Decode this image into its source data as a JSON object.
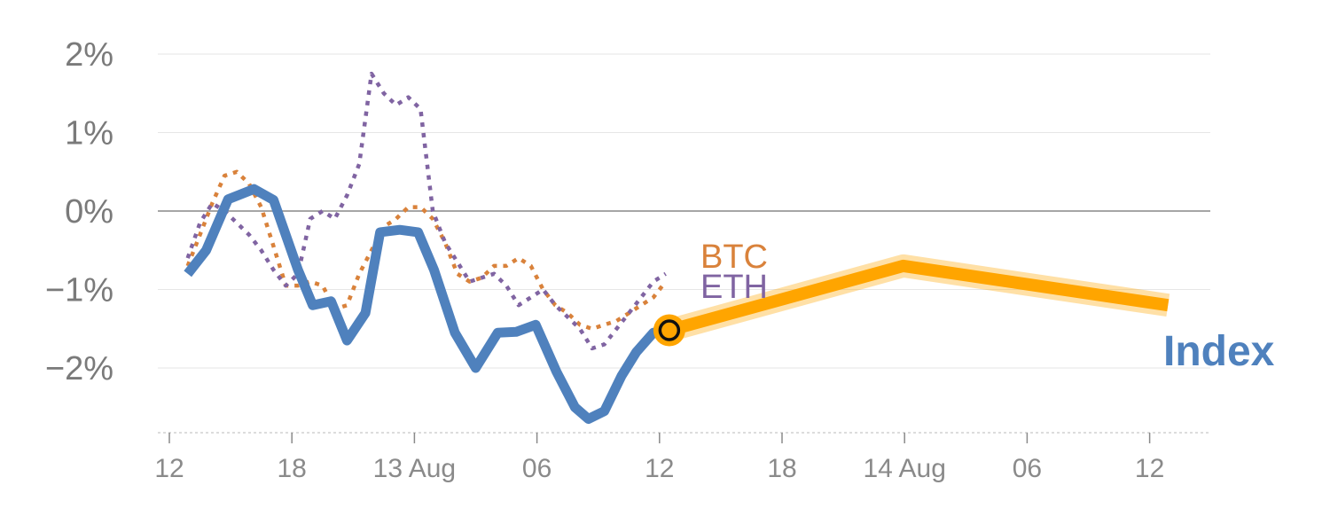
{
  "chart_data": {
    "type": "line",
    "y_format": "percent",
    "ylim": [
      -2.8,
      2.2
    ],
    "xlim": [
      -2,
      87
    ],
    "grid": true,
    "colors": {
      "index": "#4f81bd",
      "btc": "#d9823b",
      "eth": "#8064a2",
      "forecast": "#ffa500",
      "grid": "#e6e6e6",
      "zero": "#888888"
    },
    "y_ticks": [
      {
        "value": 2,
        "label": "2%"
      },
      {
        "value": 1,
        "label": "1%"
      },
      {
        "value": 0,
        "label": "0%"
      },
      {
        "value": -1,
        "label": "−1%"
      },
      {
        "value": -2,
        "label": "−2%"
      }
    ],
    "x_ticks": [
      {
        "x": 0,
        "label": "12"
      },
      {
        "x": 10,
        "label": "18"
      },
      {
        "x": 20,
        "label": "13 Aug"
      },
      {
        "x": 30,
        "label": "06"
      },
      {
        "x": 40,
        "label": "12"
      },
      {
        "x": 50,
        "label": "18"
      },
      {
        "x": 60,
        "label": "14 Aug"
      },
      {
        "x": 70,
        "label": "06"
      },
      {
        "x": 80,
        "label": "12"
      }
    ],
    "series": [
      {
        "key": "btc",
        "name": "BTC",
        "style": "dotted",
        "x": [
          1.5,
          2.5,
          3.5,
          4.5,
          5.5,
          6.5,
          7.5,
          8.5,
          9.5,
          10.5,
          11.5,
          12.5,
          13.5,
          14.5,
          15.5,
          16.5,
          17.5,
          18.5,
          19.5,
          20.5,
          21.5,
          22.5,
          23.5,
          24.5,
          25.5,
          26.5,
          27.5,
          28.5,
          29.5,
          30.5,
          31.5,
          32.5,
          33.5,
          34.5,
          35.5,
          36.5,
          37.5,
          38.5,
          39.5,
          40.5
        ],
        "y": [
          -0.7,
          -0.3,
          0.1,
          0.45,
          0.5,
          0.35,
          0.05,
          -0.45,
          -0.95,
          -0.95,
          -0.9,
          -0.95,
          -1.25,
          -1.2,
          -0.8,
          -0.5,
          -0.2,
          -0.1,
          0.05,
          0.05,
          -0.1,
          -0.4,
          -0.8,
          -0.9,
          -0.85,
          -0.7,
          -0.7,
          -0.6,
          -0.7,
          -1.0,
          -1.2,
          -1.3,
          -1.45,
          -1.5,
          -1.45,
          -1.4,
          -1.3,
          -1.2,
          -1.1,
          -0.9
        ]
      },
      {
        "key": "eth",
        "name": "ETH",
        "style": "dotted",
        "x": [
          1.5,
          2.5,
          3.5,
          4.5,
          5.5,
          6.5,
          7.5,
          8.5,
          9.5,
          10.5,
          11.5,
          12.5,
          13.5,
          14.5,
          15.5,
          16.5,
          17.5,
          18.5,
          19.5,
          20.5,
          21.5,
          22.5,
          23.5,
          24.5,
          25.5,
          26.5,
          27.5,
          28.5,
          29.5,
          30.5,
          31.5,
          32.5,
          33.5,
          34.5,
          35.5,
          36.5,
          37.5,
          38.5,
          39.5,
          40.5
        ],
        "y": [
          -0.6,
          -0.15,
          0.1,
          0.0,
          -0.15,
          -0.3,
          -0.5,
          -0.75,
          -0.95,
          -0.8,
          -0.1,
          0.0,
          -0.1,
          0.2,
          0.6,
          1.75,
          1.5,
          1.35,
          1.45,
          1.3,
          0.0,
          -0.4,
          -0.65,
          -0.9,
          -0.85,
          -0.8,
          -0.95,
          -1.2,
          -1.1,
          -1.0,
          -1.2,
          -1.35,
          -1.5,
          -1.75,
          -1.7,
          -1.5,
          -1.3,
          -1.1,
          -0.9,
          -0.8
        ]
      },
      {
        "key": "index",
        "name": "Index",
        "style": "solid",
        "x": [
          1.5,
          3,
          4.8,
          6.9,
          8.5,
          10.5,
          11.7,
          13.2,
          14.5,
          16,
          17.2,
          18.8,
          20.3,
          21.6,
          23.3,
          25,
          26.8,
          28.3,
          29.9,
          31.6,
          33.1,
          34.2,
          35.5,
          36.9,
          38.1,
          39.5,
          40.8
        ],
        "y": [
          -0.8,
          -0.5,
          0.15,
          0.28,
          0.14,
          -0.75,
          -1.2,
          -1.15,
          -1.65,
          -1.3,
          -0.27,
          -0.24,
          -0.27,
          -0.75,
          -1.55,
          -2.0,
          -1.55,
          -1.54,
          -1.45,
          -2.05,
          -2.5,
          -2.65,
          -2.55,
          -2.1,
          -1.8,
          -1.55,
          -1.52
        ]
      }
    ],
    "forecast": {
      "x": [
        40.8,
        59.9,
        81.5
      ],
      "y": [
        -1.52,
        -0.7,
        -1.2
      ]
    },
    "marker": {
      "x": 40.8,
      "y": -1.52
    },
    "labels": {
      "btc": "BTC",
      "eth": "ETH",
      "index": "Index"
    }
  }
}
